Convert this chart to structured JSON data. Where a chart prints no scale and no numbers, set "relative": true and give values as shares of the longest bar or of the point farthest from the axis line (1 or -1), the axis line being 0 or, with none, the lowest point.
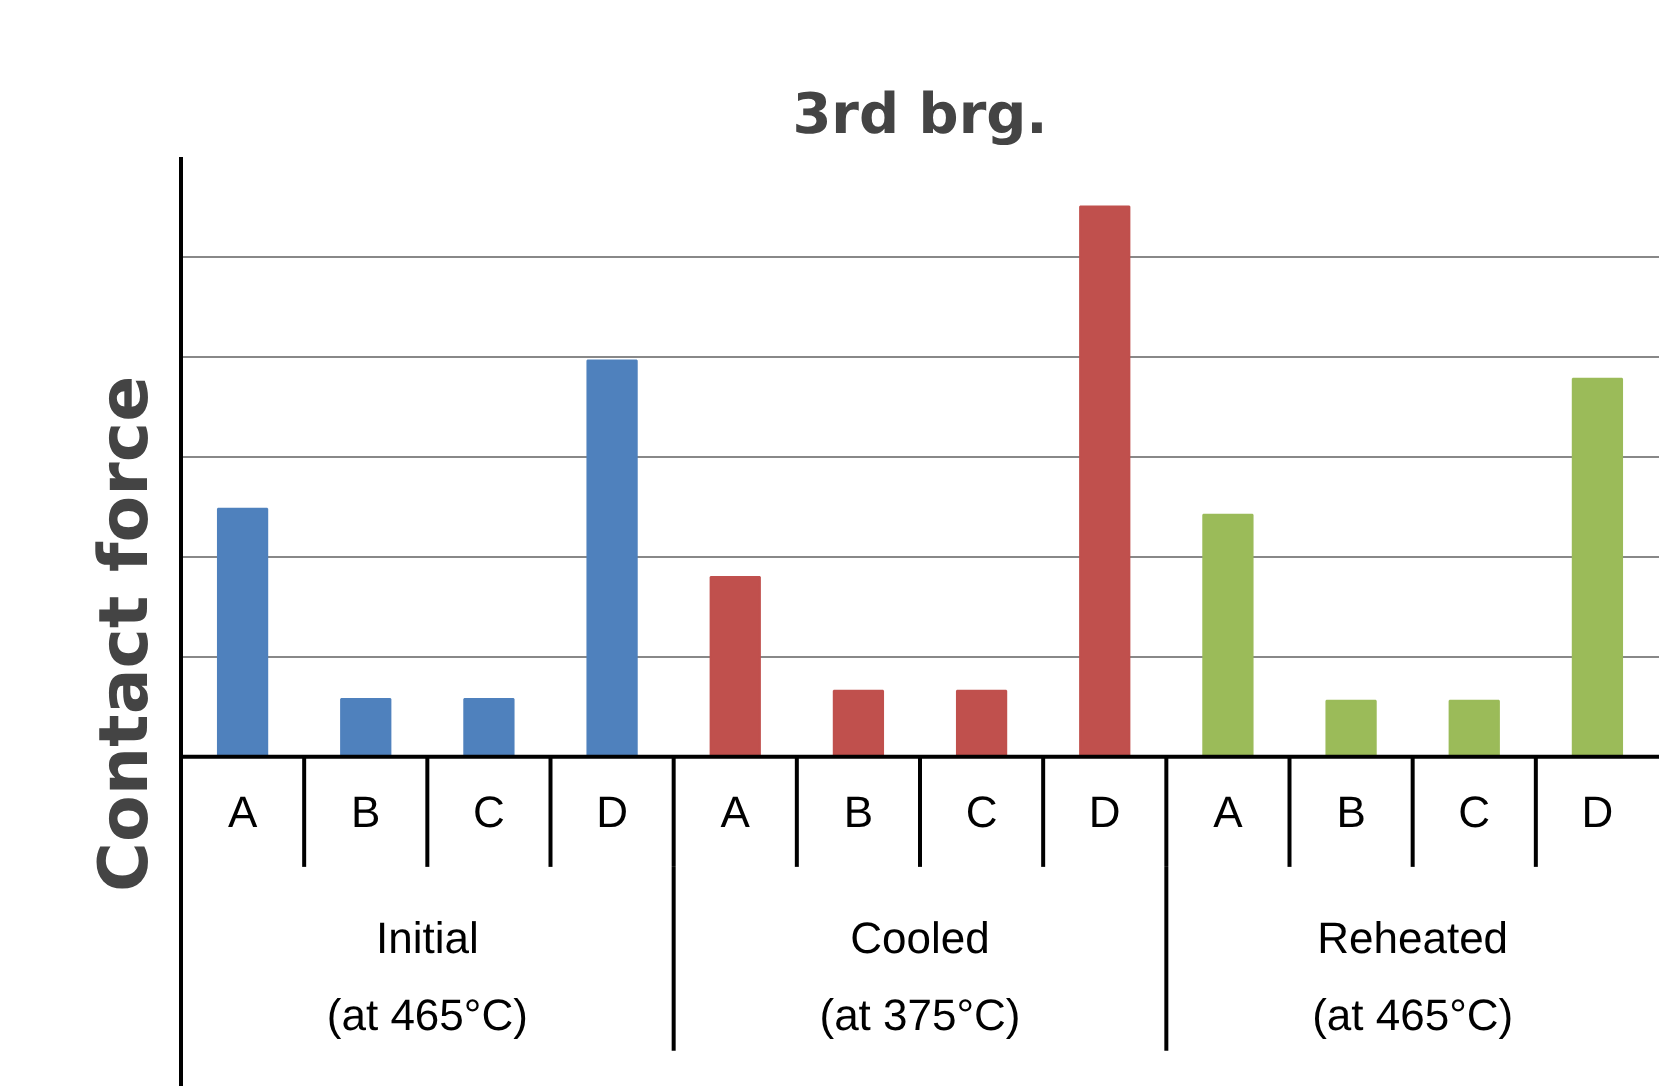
{
  "chart_data": {
    "type": "bar",
    "title": "3rd brg.",
    "ylabel": "Contact  force",
    "relative": true,
    "grid": "y",
    "categories": [
      "A",
      "B",
      "C",
      "D",
      "A",
      "B",
      "C",
      "D",
      "A",
      "B",
      "C",
      "D"
    ],
    "values": [
      0.451,
      0.105,
      0.105,
      0.72,
      0.327,
      0.12,
      0.12,
      1,
      0.44,
      0.102,
      0.102,
      0.687
    ],
    "colors": [
      "#4f81bd",
      "#4f81bd",
      "#4f81bd",
      "#4f81bd",
      "#c0504d",
      "#c0504d",
      "#c0504d",
      "#c0504d",
      "#9bbb59",
      "#9bbb59",
      "#9bbb59",
      "#9bbb59"
    ],
    "annotations": [
      "Initial\n(at 465°C)",
      "Cooled\n(at 375°C)",
      "Reheated\n(at 465°C)"
    ]
  }
}
